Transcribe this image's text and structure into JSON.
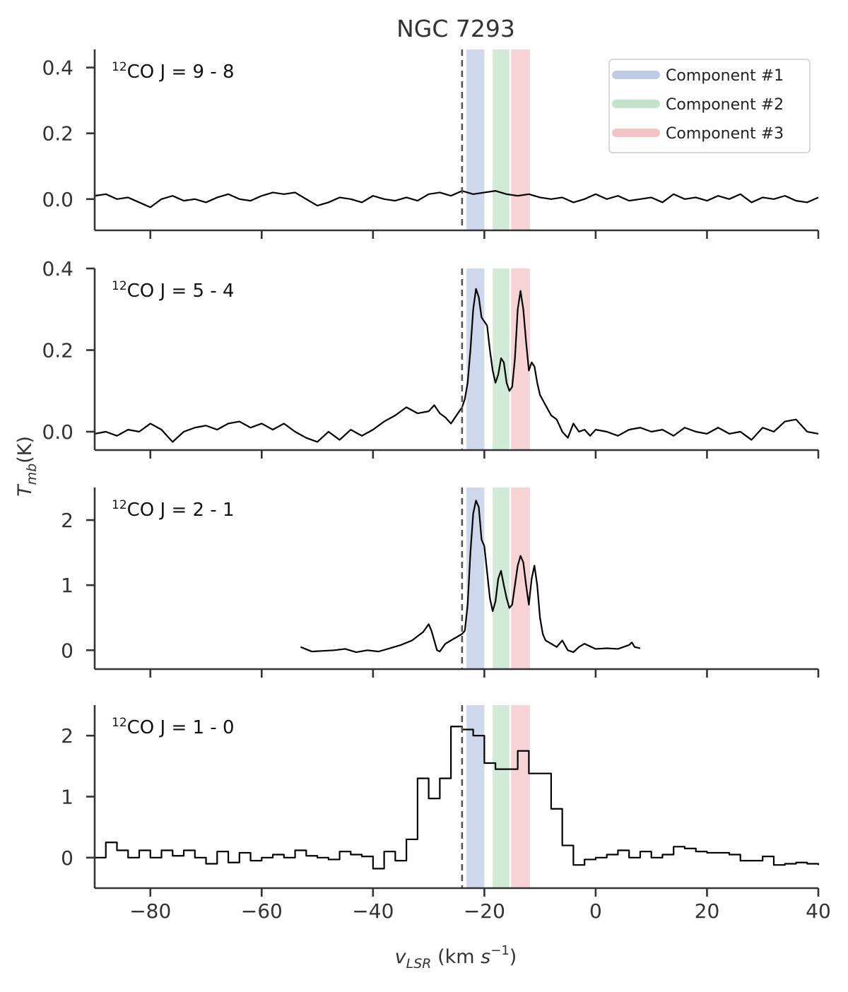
{
  "chart_data": {
    "type": "line",
    "title": "NGC 7293",
    "xlabel": "v_LSR (km s^-1)",
    "xlabel_parts": {
      "main": "v",
      "sub": "LSR",
      "unit": "(km ",
      "unit_var": "s",
      "exp": "−1",
      "close": ")"
    },
    "ylabel": "T_mb(K)",
    "ylabel_parts": {
      "main": "T",
      "sub": "mb",
      "unit": "(K)"
    },
    "xlim": [
      -90,
      40
    ],
    "xticks": [
      -80,
      -60,
      -40,
      -20,
      0,
      20,
      40
    ],
    "xtick_labels": [
      "−80",
      "−60",
      "−40",
      "−20",
      "0",
      "20",
      "40"
    ],
    "reference_velocity": -24,
    "components": [
      {
        "name": "Component #1",
        "range": [
          -23.2,
          -20.0
        ],
        "color": "#aebce0"
      },
      {
        "name": "Component #2",
        "range": [
          -18.5,
          -15.5
        ],
        "color": "#b3dcbe"
      },
      {
        "name": "Component #3",
        "range": [
          -15.2,
          -11.8
        ],
        "color": "#f1b5b9"
      }
    ],
    "legend_position": "top-right",
    "panels": [
      {
        "label_sup": "12",
        "label_main": "CO J = 9 - 8",
        "ylim": [
          -0.095,
          0.455
        ],
        "yticks": [
          0.0,
          0.2,
          0.4
        ],
        "ytick_labels": [
          "0.0",
          "0.2",
          "0.4"
        ],
        "style": "line",
        "x": [
          -90,
          -88,
          -86,
          -84,
          -82,
          -80,
          -78,
          -76,
          -74,
          -72,
          -70,
          -68,
          -66,
          -64,
          -62,
          -60,
          -58,
          -56,
          -54,
          -52,
          -50,
          -48,
          -46,
          -44,
          -42,
          -40,
          -38,
          -36,
          -34,
          -32,
          -30,
          -28,
          -26,
          -24,
          -22,
          -20,
          -18,
          -16,
          -14,
          -12,
          -10,
          -8,
          -6,
          -4,
          -2,
          0,
          2,
          4,
          6,
          8,
          10,
          12,
          14,
          16,
          18,
          20,
          22,
          24,
          26,
          28,
          30,
          32,
          34,
          36,
          38,
          40
        ],
        "y": [
          0.01,
          0.015,
          0.0,
          0.005,
          -0.01,
          -0.025,
          0.0,
          0.01,
          -0.005,
          0.0,
          -0.01,
          0.005,
          0.015,
          0.0,
          -0.005,
          0.01,
          0.02,
          0.015,
          0.02,
          0.0,
          -0.02,
          -0.01,
          0.005,
          0.0,
          -0.01,
          0.01,
          0.0,
          -0.005,
          0.005,
          -0.005,
          0.015,
          0.02,
          0.01,
          0.025,
          0.015,
          0.02,
          0.025,
          0.015,
          0.01,
          0.015,
          0.005,
          0.0,
          0.005,
          -0.01,
          0.0,
          0.015,
          0.0,
          0.01,
          -0.005,
          0.0,
          0.005,
          -0.01,
          0.015,
          0.0,
          0.005,
          -0.005,
          0.01,
          0.0,
          0.015,
          -0.01,
          0.005,
          0.0,
          0.01,
          -0.005,
          -0.01,
          0.005
        ]
      },
      {
        "label_sup": "12",
        "label_main": "CO J = 5 - 4",
        "ylim": [
          -0.045,
          0.4
        ],
        "yticks": [
          0.0,
          0.2,
          0.4
        ],
        "ytick_labels": [
          "0.0",
          "0.2",
          "0.4"
        ],
        "style": "line",
        "x": [
          -90,
          -88,
          -86,
          -84,
          -82,
          -80,
          -78,
          -76,
          -74,
          -72,
          -70,
          -68,
          -66,
          -64,
          -62,
          -60,
          -58,
          -56,
          -54,
          -52,
          -50,
          -48,
          -46,
          -44,
          -42,
          -40,
          -38,
          -36,
          -34,
          -32,
          -30,
          -29,
          -28,
          -27,
          -26,
          -25,
          -24,
          -23.5,
          -23,
          -22.5,
          -22,
          -21.5,
          -21,
          -20.5,
          -20,
          -19.5,
          -19,
          -18.5,
          -18,
          -17.5,
          -17,
          -16.5,
          -16,
          -15.5,
          -15,
          -14.5,
          -14,
          -13.5,
          -13,
          -12.5,
          -12,
          -11.5,
          -11,
          -10.5,
          -10,
          -9,
          -8,
          -7,
          -6,
          -5,
          -4,
          -3,
          -2,
          -1,
          0,
          2,
          4,
          6,
          8,
          10,
          12,
          14,
          16,
          18,
          20,
          22,
          24,
          26,
          28,
          30,
          32,
          34,
          36,
          38,
          40
        ],
        "y": [
          -0.005,
          0.0,
          -0.01,
          0.005,
          0.0,
          0.02,
          0.005,
          -0.025,
          0.0,
          0.01,
          0.015,
          0.005,
          0.02,
          0.025,
          0.01,
          0.02,
          0.005,
          0.02,
          0.0,
          -0.015,
          -0.025,
          0.0,
          -0.02,
          0.005,
          -0.01,
          0.005,
          0.025,
          0.04,
          0.06,
          0.045,
          0.05,
          0.065,
          0.045,
          0.035,
          0.02,
          0.04,
          0.06,
          0.08,
          0.12,
          0.2,
          0.3,
          0.35,
          0.33,
          0.28,
          0.27,
          0.26,
          0.2,
          0.15,
          0.12,
          0.14,
          0.18,
          0.17,
          0.12,
          0.1,
          0.11,
          0.18,
          0.3,
          0.345,
          0.3,
          0.22,
          0.15,
          0.17,
          0.16,
          0.12,
          0.09,
          0.065,
          0.04,
          0.03,
          0.0,
          -0.015,
          0.02,
          0.0,
          0.005,
          -0.01,
          0.005,
          0.0,
          -0.01,
          0.005,
          0.01,
          0.0,
          0.005,
          -0.01,
          0.01,
          0.0,
          -0.005,
          0.01,
          -0.005,
          0.0,
          -0.02,
          0.01,
          0.0,
          0.025,
          0.03,
          0.0,
          -0.005
        ]
      },
      {
        "label_sup": "12",
        "label_main": "CO J = 2 - 1",
        "ylim": [
          -0.29,
          2.5
        ],
        "yticks": [
          0,
          1,
          2
        ],
        "ytick_labels": [
          "0",
          "1",
          "2"
        ],
        "style": "line",
        "x": [
          -53,
          -51,
          -49,
          -47,
          -45,
          -43,
          -41,
          -39,
          -37,
          -35,
          -33,
          -31,
          -30,
          -29.5,
          -29,
          -28.5,
          -28,
          -27,
          -26,
          -25,
          -24,
          -23.5,
          -23,
          -22.5,
          -22,
          -21.5,
          -21,
          -20.5,
          -20,
          -19.5,
          -19,
          -18.5,
          -18,
          -17.5,
          -17,
          -16.5,
          -16,
          -15.5,
          -15,
          -14.5,
          -14,
          -13.5,
          -13,
          -12.5,
          -12,
          -11.5,
          -11,
          -10.5,
          -10,
          -9.5,
          -9,
          -8,
          -7,
          -6,
          -5,
          -4,
          -3,
          -2,
          0,
          2,
          4,
          6,
          6.5,
          7,
          8
        ],
        "y": [
          0.05,
          -0.02,
          -0.01,
          0.0,
          0.02,
          -0.03,
          0.0,
          -0.02,
          0.03,
          0.08,
          0.15,
          0.28,
          0.4,
          0.3,
          0.15,
          0.0,
          -0.02,
          0.1,
          0.15,
          0.2,
          0.25,
          0.3,
          0.7,
          1.5,
          2.1,
          2.3,
          2.2,
          1.7,
          1.6,
          1.2,
          0.8,
          0.6,
          0.75,
          1.1,
          1.22,
          1.0,
          0.8,
          0.65,
          0.7,
          1.0,
          1.3,
          1.45,
          1.35,
          1.0,
          0.7,
          1.1,
          1.3,
          1.0,
          0.5,
          0.25,
          0.15,
          0.1,
          0.05,
          0.15,
          0.0,
          -0.03,
          0.05,
          0.1,
          0.02,
          0.03,
          0.02,
          0.08,
          0.12,
          0.05,
          0.03
        ]
      },
      {
        "label_sup": "12",
        "label_main": "CO J = 1 - 0",
        "ylim": [
          -0.5,
          2.5
        ],
        "yticks": [
          0,
          1,
          2
        ],
        "ytick_labels": [
          "0",
          "1",
          "2"
        ],
        "style": "step",
        "x": [
          -90,
          -88,
          -86,
          -84,
          -82,
          -80,
          -78,
          -76,
          -74,
          -72,
          -70,
          -68,
          -66,
          -64,
          -62,
          -60,
          -58,
          -56,
          -54,
          -52,
          -50,
          -48,
          -46,
          -44,
          -42,
          -40,
          -38,
          -36,
          -34,
          -32,
          -30,
          -28,
          -26,
          -24,
          -22,
          -20,
          -18,
          -16,
          -14,
          -12,
          -10,
          -8,
          -6,
          -4,
          -2,
          0,
          2,
          4,
          6,
          8,
          10,
          12,
          14,
          16,
          18,
          20,
          22,
          24,
          26,
          28,
          30,
          32,
          34,
          36,
          38,
          40
        ],
        "y": [
          0.0,
          0.25,
          0.12,
          0.0,
          0.12,
          0.0,
          0.12,
          0.03,
          0.12,
          0.0,
          -0.1,
          0.1,
          -0.08,
          0.08,
          -0.05,
          0.0,
          0.05,
          0.0,
          0.12,
          0.03,
          0.0,
          -0.03,
          0.1,
          0.05,
          0.02,
          -0.18,
          0.1,
          -0.05,
          0.3,
          1.3,
          0.97,
          1.3,
          2.15,
          2.1,
          2.0,
          1.55,
          1.45,
          1.45,
          1.75,
          1.38,
          1.38,
          0.8,
          0.2,
          -0.12,
          -0.03,
          0.0,
          0.05,
          0.12,
          0.0,
          0.1,
          0.0,
          0.05,
          0.18,
          0.15,
          0.1,
          0.08,
          0.08,
          0.05,
          -0.05,
          -0.05,
          0.02,
          -0.12,
          -0.1,
          -0.08,
          -0.1,
          -0.12
        ]
      }
    ]
  }
}
